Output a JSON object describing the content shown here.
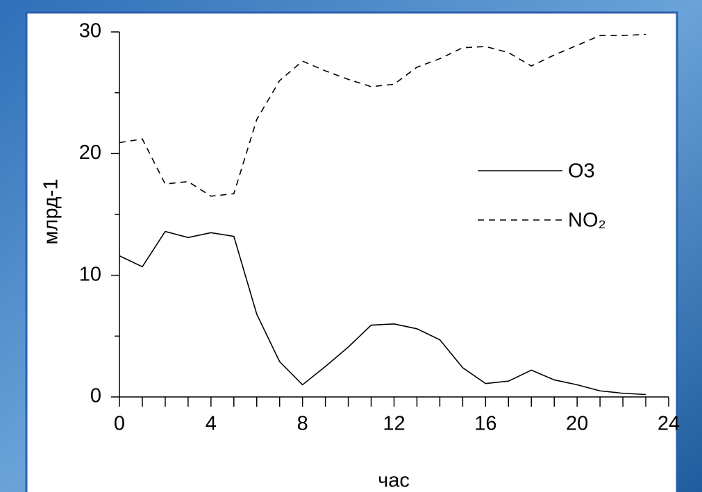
{
  "chart_data": {
    "type": "line",
    "xlabel": "час",
    "ylabel": "млрд-1",
    "x": [
      0,
      1,
      2,
      3,
      4,
      5,
      6,
      7,
      8,
      9,
      10,
      11,
      12,
      13,
      14,
      15,
      16,
      17,
      18,
      19,
      20,
      21,
      22,
      23
    ],
    "series": [
      {
        "name": "O3",
        "color": "#000000",
        "style": "solid",
        "values": [
          11.6,
          10.7,
          13.6,
          13.1,
          13.5,
          13.2,
          6.8,
          2.9,
          1.0,
          2.5,
          4.1,
          5.9,
          6.0,
          5.6,
          4.7,
          2.4,
          1.1,
          1.3,
          2.2,
          1.4,
          1.0,
          0.5,
          0.3,
          0.2
        ]
      },
      {
        "name": "NO₂",
        "color": "#000000",
        "style": "dashed",
        "values": [
          20.9,
          21.2,
          17.5,
          17.7,
          16.5,
          16.7,
          22.8,
          26.0,
          27.6,
          26.8,
          26.1,
          25.5,
          25.7,
          27.1,
          27.8,
          28.7,
          28.8,
          28.3,
          27.2,
          28.1,
          28.9,
          29.7,
          29.7,
          29.8
        ]
      }
    ],
    "xlim": [
      0,
      24
    ],
    "xticks": [
      0,
      4,
      8,
      12,
      16,
      20,
      24
    ],
    "ylim": [
      0,
      30
    ],
    "yticks": [
      0,
      10,
      20,
      30
    ],
    "grid": false
  }
}
